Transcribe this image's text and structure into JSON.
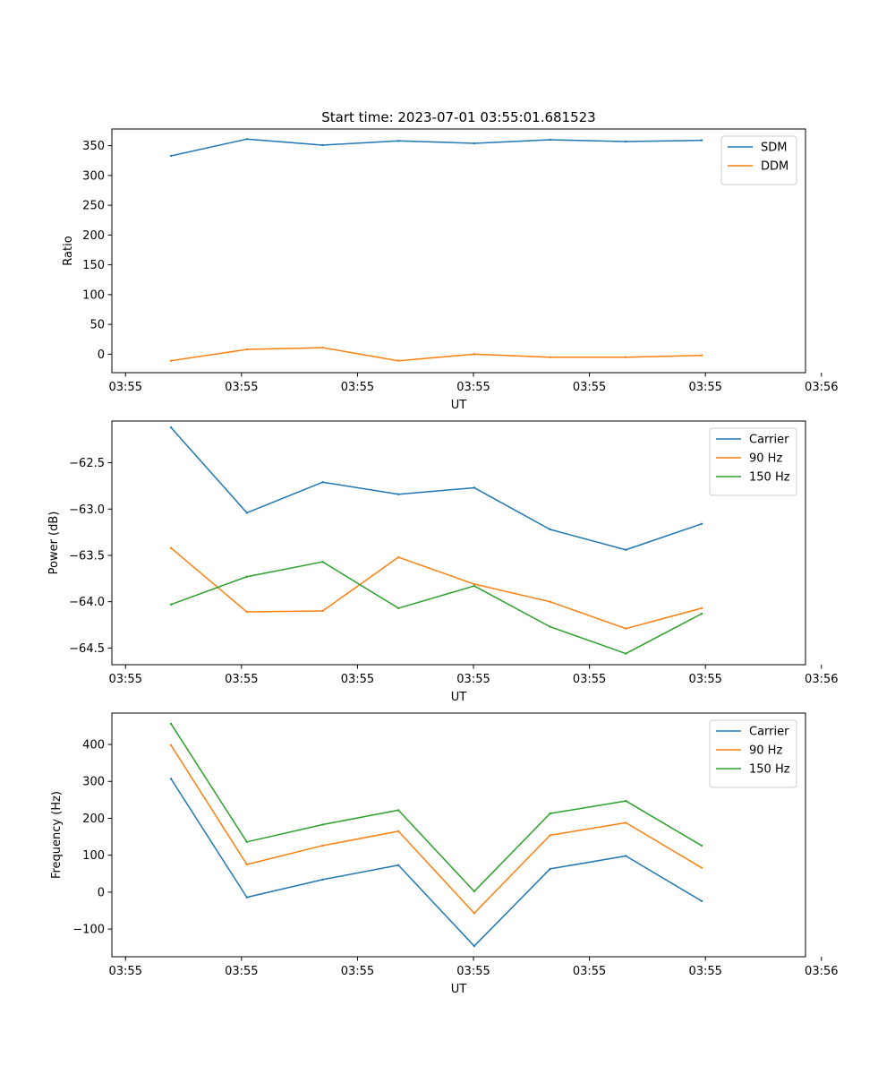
{
  "figure": {
    "title": "Start time: 2023-07-01 03:55:01.681523"
  },
  "chart_data": [
    {
      "type": "line",
      "title": "Start time: 2023-07-01 03:55:01.681523",
      "xlabel": "UT",
      "ylabel": "Ratio",
      "x": [
        1,
        2,
        3,
        4,
        5,
        6,
        7,
        8
      ],
      "xlim": [
        0.22,
        9.37
      ],
      "xticks": [
        0.4,
        1.93,
        3.46,
        4.99,
        6.52,
        8.05,
        9.58
      ],
      "xticklabels": [
        "03:55",
        "03:55",
        "03:55",
        "03:55",
        "03:55",
        "03:55",
        "03:56"
      ],
      "ylim": [
        -31,
        378
      ],
      "yticks": [
        0,
        50,
        100,
        150,
        200,
        250,
        300,
        350
      ],
      "yticklabels": [
        "0",
        "50",
        "100",
        "150",
        "200",
        "250",
        "300",
        "350"
      ],
      "legend": "upper right",
      "series": [
        {
          "name": "SDM",
          "color": "#1f77b4",
          "values": [
            333,
            361,
            351,
            358,
            354,
            360,
            357,
            359
          ]
        },
        {
          "name": "DDM",
          "color": "#ff7f0e",
          "values": [
            -11,
            8,
            11,
            -11,
            0,
            -5,
            -5,
            -2
          ]
        }
      ]
    },
    {
      "type": "line",
      "title": "",
      "xlabel": "UT",
      "ylabel": "Power (dB)",
      "x": [
        1,
        2,
        3,
        4,
        5,
        6,
        7,
        8
      ],
      "xlim": [
        0.22,
        9.37
      ],
      "xticks": [
        0.4,
        1.93,
        3.46,
        4.99,
        6.52,
        8.05,
        9.58
      ],
      "xticklabels": [
        "03:55",
        "03:55",
        "03:55",
        "03:55",
        "03:55",
        "03:55",
        "03:56"
      ],
      "ylim": [
        -64.68,
        -62.05
      ],
      "yticks": [
        -64.5,
        -64.0,
        -63.5,
        -63.0,
        -62.5
      ],
      "yticklabels": [
        "−64.5",
        "−64.0",
        "−63.5",
        "−63.0",
        "−62.5"
      ],
      "legend": "upper right",
      "series": [
        {
          "name": "Carrier",
          "color": "#1f77b4",
          "values": [
            -62.12,
            -63.04,
            -62.71,
            -62.84,
            -62.77,
            -63.22,
            -63.44,
            -63.16
          ]
        },
        {
          "name": "90 Hz",
          "color": "#ff7f0e",
          "values": [
            -63.42,
            -64.11,
            -64.1,
            -63.52,
            -63.81,
            -64.0,
            -64.29,
            -64.07
          ]
        },
        {
          "name": "150 Hz",
          "color": "#2ca02c",
          "values": [
            -64.03,
            -63.73,
            -63.57,
            -64.07,
            -63.83,
            -64.27,
            -64.56,
            -64.13
          ]
        }
      ]
    },
    {
      "type": "line",
      "title": "",
      "xlabel": "UT",
      "ylabel": "Frequency (Hz)",
      "x": [
        1,
        2,
        3,
        4,
        5,
        6,
        7,
        8
      ],
      "xlim": [
        0.22,
        9.37
      ],
      "xticks": [
        0.4,
        1.93,
        3.46,
        4.99,
        6.52,
        8.05,
        9.58
      ],
      "xticklabels": [
        "03:55",
        "03:55",
        "03:55",
        "03:55",
        "03:55",
        "03:55",
        "03:56"
      ],
      "ylim": [
        -175,
        485
      ],
      "yticks": [
        -100,
        0,
        100,
        200,
        300,
        400
      ],
      "yticklabels": [
        "−100",
        "0",
        "100",
        "200",
        "300",
        "400"
      ],
      "legend": "upper right",
      "series": [
        {
          "name": "Carrier",
          "color": "#1f77b4",
          "values": [
            307,
            -14,
            34,
            73,
            -146,
            63,
            98,
            -24
          ]
        },
        {
          "name": "90 Hz",
          "color": "#ff7f0e",
          "values": [
            398,
            75,
            126,
            165,
            -57,
            154,
            188,
            66
          ]
        },
        {
          "name": "150 Hz",
          "color": "#2ca02c",
          "values": [
            456,
            136,
            183,
            222,
            2,
            213,
            247,
            126
          ]
        }
      ]
    }
  ]
}
